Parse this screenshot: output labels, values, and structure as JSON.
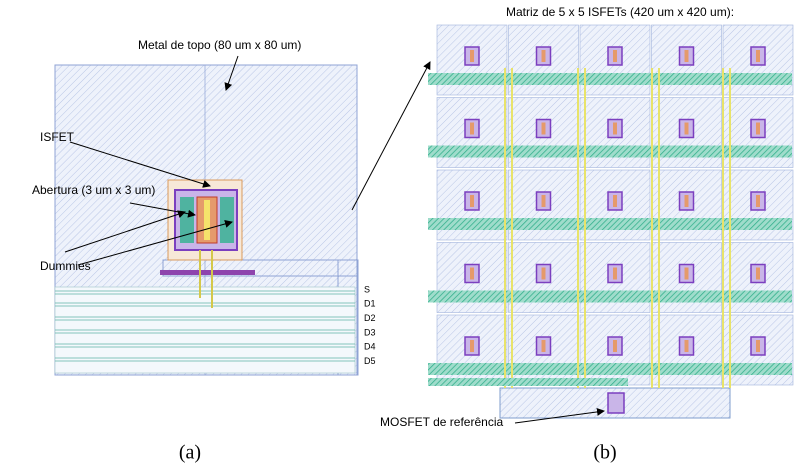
{
  "panel_a": {
    "annotations": [
      "Metal de topo (80 um x 80 um)",
      "ISFET",
      "Abertura (3 um x 3 um)",
      "Dummies"
    ],
    "pins": [
      "S",
      "D1",
      "D2",
      "D3",
      "D4",
      "D5"
    ],
    "caption": "(a)"
  },
  "panel_b": {
    "title": "Matriz de 5 x 5 ISFETs (420 um x 420 um):",
    "annotation": "MOSFET de referência",
    "caption": "(b)"
  }
}
